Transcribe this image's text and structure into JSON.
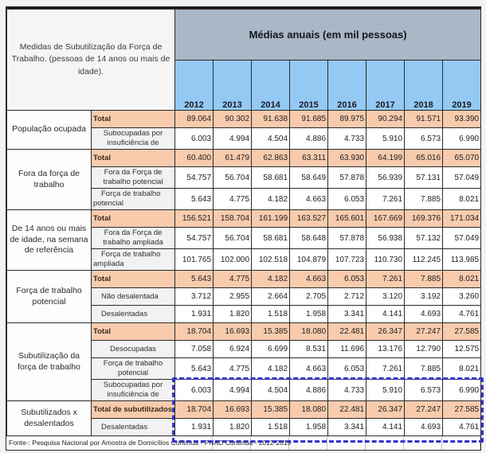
{
  "table": {
    "corner_header": "Medidas de Subutilização da Força de Trabalho. (pessoas de 14 anos ou mais de idade).",
    "main_header": "Médias anuais (em mil pessoas)",
    "years": [
      "2012",
      "2013",
      "2014",
      "2015",
      "2016",
      "2017",
      "2018",
      "2019"
    ],
    "sections": [
      {
        "label": "População ocupada",
        "rows": [
          {
            "label": "Total",
            "type": "total",
            "values": [
              "89.064",
              "90.302",
              "91.638",
              "91.685",
              "89.975",
              "90.294",
              "91.571",
              "93.390"
            ]
          },
          {
            "label": "Subocupadas por insuficiência de",
            "type": "sub2",
            "align": "center",
            "values": [
              "6.003",
              "4.994",
              "4.504",
              "4.886",
              "4.733",
              "5.910",
              "6.573",
              "6.990"
            ]
          }
        ]
      },
      {
        "label": "Fora da força de trabalho",
        "rows": [
          {
            "label": "Total",
            "type": "total",
            "values": [
              "60.400",
              "61.479",
              "62.863",
              "63.311",
              "63.930",
              "64.199",
              "65.016",
              "65.070"
            ]
          },
          {
            "label": "Fora da Força de trabalho potencial",
            "type": "sub2",
            "align": "center",
            "values": [
              "54.757",
              "56.704",
              "58.681",
              "58.649",
              "57.878",
              "56.939",
              "57.131",
              "57.049"
            ]
          },
          {
            "label": "Força de trabalho potencial",
            "type": "sub2",
            "align": "left",
            "values": [
              "5.643",
              "4.775",
              "4.182",
              "4.663",
              "6.053",
              "7.261",
              "7.885",
              "8.021"
            ]
          }
        ]
      },
      {
        "label": "De 14 anos ou mais de idade, na semana de referência",
        "rows": [
          {
            "label": "Total",
            "type": "total",
            "values": [
              "156.521",
              "158.704",
              "161.199",
              "163.527",
              "165.601",
              "167.669",
              "169.376",
              "171.034"
            ]
          },
          {
            "label": "Fora da Força de trabalho ampliada",
            "type": "sub2",
            "align": "center",
            "values": [
              "54.757",
              "56.704",
              "58.681",
              "58.648",
              "57.878",
              "56.938",
              "57.132",
              "57.049"
            ]
          },
          {
            "label": "Força de trabalho ampliada",
            "type": "sub2",
            "align": "left",
            "values": [
              "101.765",
              "102.000",
              "102.518",
              "104.879",
              "107.723",
              "110.730",
              "112.245",
              "113.985"
            ]
          }
        ]
      },
      {
        "label": "Força de trabalho potencial",
        "rows": [
          {
            "label": "Total",
            "type": "total",
            "values": [
              "5.643",
              "4.775",
              "4.182",
              "4.663",
              "6.053",
              "7.261",
              "7.885",
              "8.021"
            ]
          },
          {
            "label": "Não desalentada",
            "type": "sub1",
            "align": "left",
            "values": [
              "3.712",
              "2.955",
              "2.664",
              "2.705",
              "2.712",
              "3.120",
              "3.192",
              "3.260"
            ]
          },
          {
            "label": "Desalentadas",
            "type": "sub1",
            "align": "left",
            "values": [
              "1.931",
              "1.820",
              "1.518",
              "1.958",
              "3.341",
              "4.141",
              "4.693",
              "4.761"
            ]
          }
        ]
      },
      {
        "label": "Subutilização da força de trabalho",
        "rows": [
          {
            "label": "Total",
            "type": "total",
            "values": [
              "18.704",
              "16.693",
              "15.385",
              "18.080",
              "22.481",
              "26.347",
              "27.247",
              "27.585"
            ]
          },
          {
            "label": "Desocupadas",
            "type": "sub1",
            "align": "center",
            "values": [
              "7.058",
              "6.924",
              "6.699",
              "8.531",
              "11.696",
              "13.176",
              "12.790",
              "12.575"
            ]
          },
          {
            "label": "Força de trabalho potencial",
            "type": "sub2",
            "align": "center",
            "values": [
              "5.643",
              "4.775",
              "4.182",
              "4.663",
              "6.053",
              "7.261",
              "7.885",
              "8.021"
            ]
          },
          {
            "label": "Subocupadas por insuficiência de",
            "type": "sub2",
            "align": "center",
            "values": [
              "6.003",
              "4.994",
              "4.504",
              "4.886",
              "4.733",
              "5.910",
              "6.573",
              "6.990"
            ]
          }
        ]
      },
      {
        "label": "Subutilizados x desalentados",
        "rows": [
          {
            "label": "Total de subutilizados",
            "type": "total",
            "values": [
              "18.704",
              "16.693",
              "15.385",
              "18.080",
              "22.481",
              "26.347",
              "27.247",
              "27.585"
            ]
          },
          {
            "label": "Desalentadas",
            "type": "sub1",
            "align": "left",
            "values": [
              "1.931",
              "1.820",
              "1.518",
              "1.958",
              "3.341",
              "4.141",
              "4.693",
              "4.761"
            ]
          }
        ]
      }
    ],
    "footer": "Fonte-: Pesquisa Nacional por Amostra de Domicílios Contínua - PNAD Contínua - 2012-2019"
  },
  "colors": {
    "header_blue_gray": "#a9b7c6",
    "year_blue": "#94c9f4",
    "total_salmon": "#f8cbad",
    "sublabel_gray": "#f2f2f2",
    "corner_bg": "#f5f5f5",
    "dashed_highlight": "#3333cc"
  }
}
